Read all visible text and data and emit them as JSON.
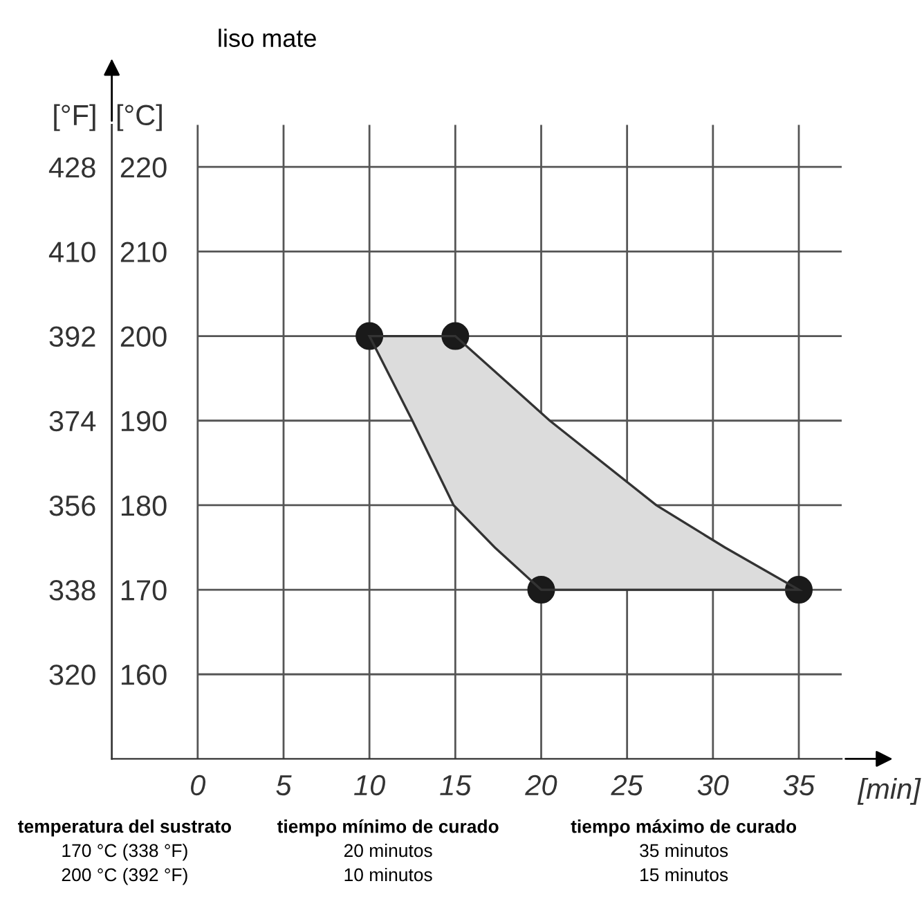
{
  "chart_data": {
    "type": "area",
    "title": "liso mate",
    "series": [
      {
        "color": "#dcdcdc",
        "x": [
          10,
          15,
          20.5,
          26.7,
          30.7,
          35,
          20,
          17.3,
          14.9,
          12.5
        ],
        "values": [
          200,
          200,
          190,
          180,
          175,
          170,
          170,
          175,
          180,
          190
        ]
      },
      {
        "type": "scatter",
        "marker": "circle",
        "color": "#1a1a1a",
        "x": [
          10,
          15,
          20,
          35
        ],
        "values": [
          200,
          200,
          170,
          170
        ]
      }
    ],
    "xlabel": "[min]",
    "ylabel": "[°C]",
    "y2label": "[°F]",
    "xlim": [
      -5,
      37.5
    ],
    "xticks": [
      0,
      5,
      10,
      15,
      20,
      25,
      30,
      35
    ],
    "ylim": [
      150,
      225
    ],
    "yticks": [
      160,
      170,
      180,
      190,
      200,
      210,
      220
    ],
    "y2lim": [
      302,
      437
    ],
    "y2ticks": [
      320,
      338,
      356,
      374,
      392,
      410,
      428
    ],
    "grid": true,
    "annotations": [
      "temperatura del sustrato",
      "170 °C (338 °F)",
      "200 °C (392 °F)",
      "tiempo mínimo de curado",
      "20 minutos",
      "10 minutos",
      "tiempo máximo de curado",
      "35 minutos",
      "15 minutos"
    ]
  }
}
